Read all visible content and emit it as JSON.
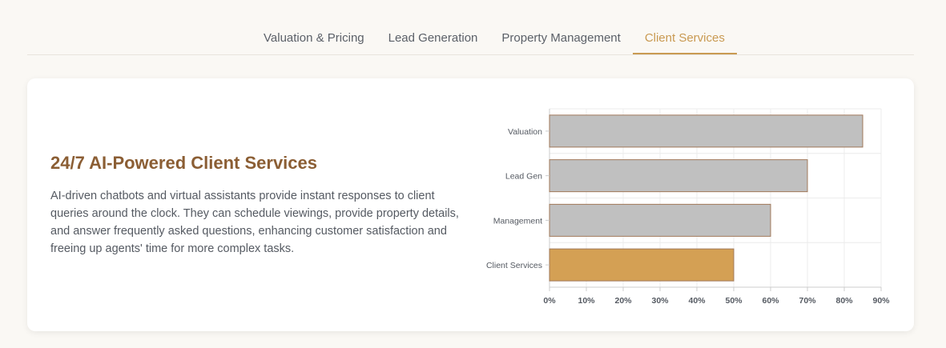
{
  "tabs": [
    {
      "label": "Valuation & Pricing",
      "active": false
    },
    {
      "label": "Lead Generation",
      "active": false
    },
    {
      "label": "Property Management",
      "active": false
    },
    {
      "label": "Client Services",
      "active": true
    }
  ],
  "content": {
    "title": "24/7 AI-Powered Client Services",
    "description": "AI-driven chatbots and virtual assistants provide instant responses to client queries around the clock. They can schedule viewings, provide property details, and answer frequently asked questions, enhancing customer satisfaction and freeing up agents' time for more complex tasks."
  },
  "colors": {
    "accent": "#c99a52",
    "title": "#8b5e34",
    "bar_default": "#c0c0c0",
    "bar_highlight": "#d4a054",
    "bar_border": "#a0785a"
  },
  "chart_data": {
    "type": "bar",
    "orientation": "horizontal",
    "categories": [
      "Valuation",
      "Lead Gen",
      "Management",
      "Client Services"
    ],
    "values": [
      85,
      70,
      60,
      50
    ],
    "highlight_index": 3,
    "xlim": [
      0,
      90
    ],
    "x_ticks": [
      "0%",
      "10%",
      "20%",
      "30%",
      "40%",
      "50%",
      "60%",
      "70%",
      "80%",
      "90%"
    ],
    "grid": true
  }
}
